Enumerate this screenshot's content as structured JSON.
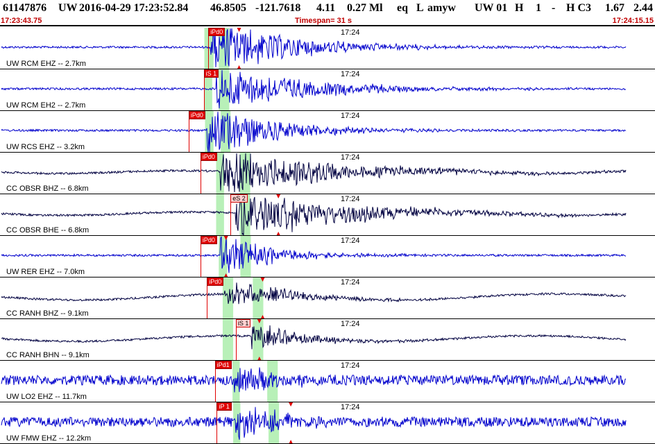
{
  "header": {
    "event_id": "61147876",
    "network": "UW",
    "origin": "2016-04-29 17:23:52.84",
    "lat": "46.8505",
    "lon": "-121.7618",
    "depth": "4.11",
    "magnitude": "0.27 Ml",
    "etype": "eq",
    "gtype": "L",
    "author": "amyw",
    "source": "UW 01",
    "quality": "H",
    "version": "1",
    "dash": "-",
    "review": "H C3",
    "rms": "1.67",
    "err": "2.44",
    "start_time": "17:23:43.75",
    "timespan": "Timespan=  31 s",
    "end_time": "17:24:15.15"
  },
  "colors": {
    "trace_blue": "#0000cc",
    "trace_navy": "#000040",
    "pick_red": "#e00000",
    "window_green": "#b8f0b8",
    "time_red": "#c00000"
  },
  "channels": [
    {
      "label": "UW RCM EHZ -- 2.7km",
      "tick": "17:24",
      "color": "blue",
      "amp": 0.6,
      "picks": [
        {
          "text": "iPd0",
          "t": 0.318,
          "kind": "p"
        },
        {
          "text": "",
          "t": 0.365,
          "kind": "arrow"
        }
      ],
      "windows": [
        [
          0.312,
          0.326
        ],
        [
          0.334,
          0.35
        ]
      ],
      "onset": 0.322,
      "decay": 0.12,
      "long": 0
    },
    {
      "label": "UW RCM EH2 -- 2.7km",
      "tick": "17:24",
      "color": "blue",
      "amp": 0.5,
      "picks": [
        {
          "text": "iS 1",
          "t": 0.311,
          "kind": "p"
        }
      ],
      "windows": [
        [
          0.312,
          0.324
        ],
        [
          0.334,
          0.35
        ]
      ],
      "onset": 0.33,
      "decay": 0.14,
      "long": 0
    },
    {
      "label": "UW RCS EHZ -- 3.2km",
      "tick": "17:24",
      "color": "blue",
      "amp": 0.6,
      "picks": [
        {
          "text": "iPd0",
          "t": 0.288,
          "kind": "p"
        }
      ],
      "windows": [
        [
          0.313,
          0.326
        ],
        [
          0.337,
          0.352
        ]
      ],
      "onset": 0.315,
      "decay": 0.1,
      "long": 0
    },
    {
      "label": "CC OBSR BHZ -- 6.8km",
      "tick": "17:24",
      "color": "navy",
      "amp": 0.55,
      "picks": [
        {
          "text": "iPd0",
          "t": 0.306,
          "kind": "p"
        }
      ],
      "windows": [
        [
          0.33,
          0.342
        ],
        [
          0.366,
          0.382
        ]
      ],
      "onset": 0.335,
      "decay": 0.16,
      "long": 0.25
    },
    {
      "label": "CC OBSR BHE -- 6.8km",
      "tick": "17:24",
      "color": "navy",
      "amp": 0.55,
      "picks": [
        {
          "text": "eS 2",
          "t": 0.352,
          "kind": "s"
        },
        {
          "text": "",
          "t": 0.425,
          "kind": "arrow"
        }
      ],
      "windows": [
        [
          0.33,
          0.342
        ],
        [
          0.366,
          0.382
        ]
      ],
      "onset": 0.36,
      "decay": 0.16,
      "long": 0.3
    },
    {
      "label": "UW RER EHZ -- 7.0km",
      "tick": "17:24",
      "color": "blue",
      "amp": 0.45,
      "picks": [
        {
          "text": "iPd0",
          "t": 0.306,
          "kind": "p"
        },
        {
          "text": "",
          "t": 0.345,
          "kind": "arrow"
        }
      ],
      "windows": [
        [
          0.334,
          0.347
        ],
        [
          0.367,
          0.383
        ]
      ],
      "onset": 0.336,
      "decay": 0.08,
      "long": 0
    },
    {
      "label": "CC RANH BHZ -- 9.1km",
      "tick": "17:24",
      "color": "navy",
      "amp": 0.3,
      "picks": [
        {
          "text": "iPd0",
          "t": 0.316,
          "kind": "p"
        },
        {
          "text": "",
          "t": 0.401,
          "kind": "arrow"
        }
      ],
      "windows": [
        [
          0.34,
          0.356
        ],
        [
          0.386,
          0.402
        ]
      ],
      "onset": 0.343,
      "decay": 0.1,
      "long": 0.55
    },
    {
      "label": "CC RANH BHN -- 9.1km",
      "tick": "17:24",
      "color": "navy",
      "amp": 0.3,
      "picks": [
        {
          "text": "iS 1",
          "t": 0.36,
          "kind": "s"
        },
        {
          "text": "",
          "t": 0.396,
          "kind": "arrow"
        }
      ],
      "windows": [
        [
          0.34,
          0.356
        ],
        [
          0.386,
          0.402
        ]
      ],
      "onset": 0.384,
      "decay": 0.08,
      "long": 0.5
    },
    {
      "label": "UW LO2 EHZ -- 11.7km",
      "tick": "17:24",
      "color": "blue",
      "amp": 0.35,
      "picks": [
        {
          "text": "iPd1",
          "t": 0.328,
          "kind": "p"
        }
      ],
      "windows": [
        [
          0.355,
          0.366
        ],
        [
          0.408,
          0.424
        ]
      ],
      "onset": 0.358,
      "decay": 0.06,
      "long": 0
    },
    {
      "label": "UW FMW EHZ -- 12.2km",
      "tick": "17:24",
      "color": "blue",
      "amp": 0.45,
      "picks": [
        {
          "text": "iP 1",
          "t": 0.331,
          "kind": "p"
        },
        {
          "text": "",
          "t": 0.444,
          "kind": "arrow"
        }
      ],
      "windows": [
        [
          0.356,
          0.367
        ],
        [
          0.41,
          0.426
        ]
      ],
      "onset": 0.36,
      "decay": 0.06,
      "long": 0
    }
  ]
}
